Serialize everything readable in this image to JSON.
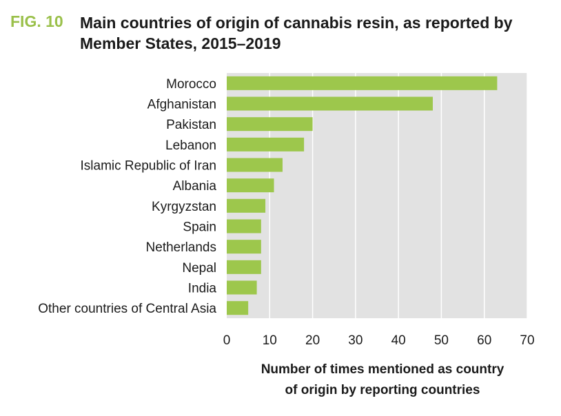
{
  "figure": {
    "label": "FIG. 10",
    "title_line1": "Main countries of origin of cannabis resin, as reported by",
    "title_line2": "Member States, 2015–2019"
  },
  "colors": {
    "bar": "#9dc74c",
    "plot_bg": "#e2e2e2",
    "grid": "#ffffff",
    "accent": "#9ac04a"
  },
  "chart_data": {
    "type": "bar",
    "orientation": "horizontal",
    "categories": [
      "Morocco",
      "Afghanistan",
      "Pakistan",
      "Lebanon",
      "Islamic Republic of Iran",
      "Albania",
      "Kyrgyzstan",
      "Spain",
      "Netherlands",
      "Nepal",
      "India",
      "Other countries of Central Asia"
    ],
    "values": [
      63,
      48,
      20,
      18,
      13,
      11,
      9,
      8,
      8,
      8,
      7,
      5
    ],
    "xlim": [
      0,
      70
    ],
    "xticks": [
      0,
      10,
      20,
      30,
      40,
      50,
      60,
      70
    ],
    "xlabel_line1": "Number of times mentioned as country",
    "xlabel_line2": "of origin by reporting countries",
    "ylabel": "",
    "grid": true
  }
}
